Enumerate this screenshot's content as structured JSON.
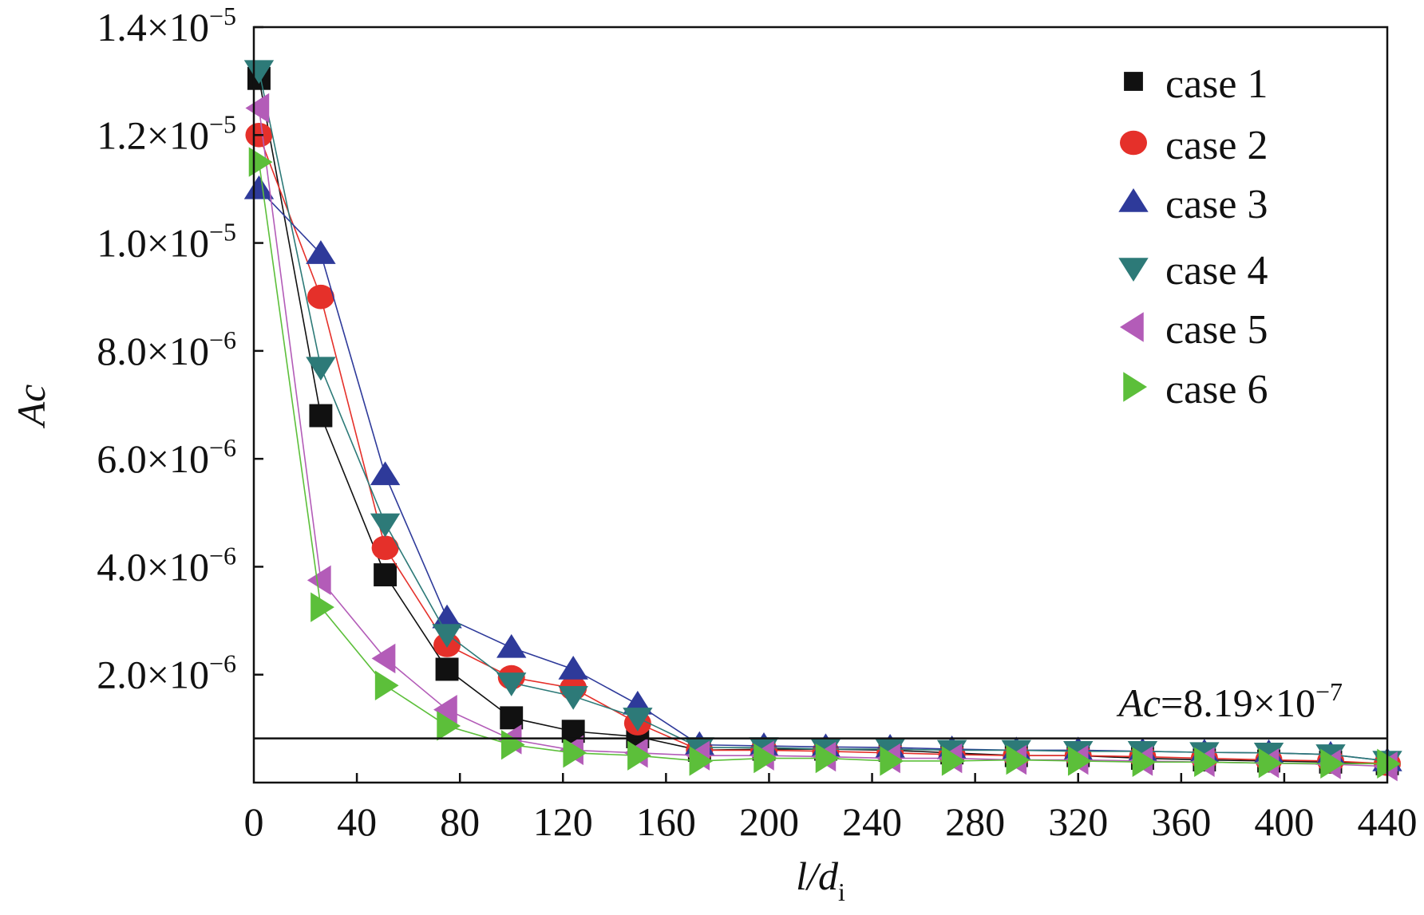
{
  "chart_data": {
    "type": "line",
    "title": "",
    "xlabel": "l/d",
    "xlabel_sub": "i",
    "ylabel": "Ac",
    "xlim": [
      0,
      440
    ],
    "ylim": [
      0,
      1.4e-05
    ],
    "grid": false,
    "legend_position": "top-right",
    "x_ticks": [
      "0",
      "40",
      "80",
      "120",
      "160",
      "200",
      "240",
      "280",
      "320",
      "360",
      "400",
      "440"
    ],
    "y_ticks": [
      {
        "value": 2e-06,
        "mantissa": "2.0×10",
        "exp": "−6"
      },
      {
        "value": 4e-06,
        "mantissa": "4.0×10",
        "exp": "−6"
      },
      {
        "value": 6e-06,
        "mantissa": "6.0×10",
        "exp": "−6"
      },
      {
        "value": 8e-06,
        "mantissa": "8.0×10",
        "exp": "−6"
      },
      {
        "value": 1e-05,
        "mantissa": "1.0×10",
        "exp": "−5"
      },
      {
        "value": 1.2e-05,
        "mantissa": "1.2×10",
        "exp": "−5"
      },
      {
        "value": 1.4e-05,
        "mantissa": "1.4×10",
        "exp": "−5"
      }
    ],
    "reference_line": {
      "value": 8.19e-07,
      "label_var": "Ac",
      "label_value": "=8.19×10",
      "label_exp": "−7"
    },
    "x": [
      2,
      26,
      51,
      75,
      100,
      124,
      149,
      173,
      198,
      222,
      247,
      271,
      296,
      320,
      345,
      369,
      394,
      418,
      440
    ],
    "series": [
      {
        "name": "case 1",
        "marker": "square",
        "color": "#111111",
        "values": [
          1.305e-05,
          6.8e-06,
          3.85e-06,
          2.1e-06,
          1.2e-06,
          9.5e-07,
          8.5e-07,
          6e-07,
          6.2e-07,
          6.2e-07,
          6e-07,
          5.5e-07,
          5e-07,
          5e-07,
          4.5e-07,
          4.2e-07,
          4e-07,
          3.8e-07,
          3.5e-07
        ]
      },
      {
        "name": "case 2",
        "marker": "circle",
        "color": "#e5302a",
        "values": [
          1.2e-05,
          9e-06,
          4.35e-06,
          2.55e-06,
          1.95e-06,
          1.75e-06,
          1.1e-06,
          6e-07,
          6e-07,
          5.8e-07,
          5.5e-07,
          5.2e-07,
          5e-07,
          5e-07,
          4.8e-07,
          4.5e-07,
          4.2e-07,
          4e-07,
          3.5e-07
        ]
      },
      {
        "name": "case 3",
        "marker": "triangle-up",
        "color": "#2e3a9a",
        "values": [
          1.1e-05,
          9.8e-06,
          5.7e-06,
          3.05e-06,
          2.5e-06,
          2.1e-06,
          1.45e-06,
          7e-07,
          6.8e-07,
          6.6e-07,
          6.5e-07,
          6.2e-07,
          6e-07,
          6e-07,
          5.8e-07,
          5.6e-07,
          5.5e-07,
          5.2e-07,
          4e-07
        ]
      },
      {
        "name": "case 4",
        "marker": "triangle-down",
        "color": "#2d7a78",
        "values": [
          1.32e-05,
          7.7e-06,
          4.8e-06,
          2.75e-06,
          1.85e-06,
          1.6e-06,
          1.2e-06,
          6.5e-07,
          6.5e-07,
          6.2e-07,
          6.2e-07,
          6e-07,
          6e-07,
          5.8e-07,
          5.8e-07,
          5.6e-07,
          5.5e-07,
          5.2e-07,
          4e-07
        ]
      },
      {
        "name": "case 5",
        "marker": "triangle-left",
        "color": "#b35cb8",
        "values": [
          1.25e-05,
          3.75e-06,
          2.3e-06,
          1.35e-06,
          8e-07,
          6e-07,
          5.5e-07,
          5e-07,
          5e-07,
          4.8e-07,
          4.5e-07,
          4.5e-07,
          4.2e-07,
          4.2e-07,
          4e-07,
          3.8e-07,
          3.6e-07,
          3.4e-07,
          3e-07
        ]
      },
      {
        "name": "case 6",
        "marker": "triangle-right",
        "color": "#5cbf3a",
        "values": [
          1.15e-05,
          3.25e-06,
          1.8e-06,
          1.05e-06,
          7e-07,
          5.5e-07,
          5e-07,
          4e-07,
          4.5e-07,
          4.5e-07,
          4e-07,
          4e-07,
          4.2e-07,
          4e-07,
          3.8e-07,
          3.8e-07,
          3.6e-07,
          3.5e-07,
          3.5e-07
        ]
      }
    ]
  }
}
